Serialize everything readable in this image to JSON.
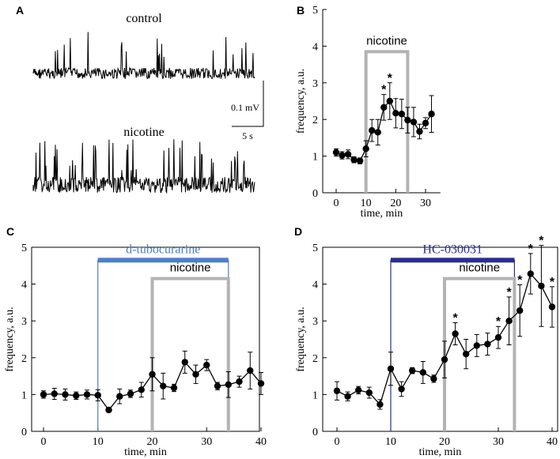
{
  "panels": {
    "A": {
      "letter": "A",
      "trace_top_label": "control",
      "trace_bottom_label": "nicotine",
      "scale_v": "0.1 mV",
      "scale_h": "5 s"
    },
    "B": {
      "letter": "B"
    },
    "C": {
      "letter": "C"
    },
    "D": {
      "letter": "D"
    }
  },
  "colors": {
    "gray_bar": "#b3b3b3",
    "dtc": "#4f7fc4",
    "hc": "#2b2f8c",
    "ink": "#000000"
  },
  "chart_data": [
    {
      "id": "B",
      "type": "line",
      "title": "",
      "xlabel": "time, min",
      "ylabel": "frequency, a.u.",
      "xlim": [
        -2,
        35
      ],
      "ylim": [
        0,
        5
      ],
      "xticks": [
        0,
        10,
        20,
        30
      ],
      "yticks": [
        0,
        1,
        2,
        3,
        4,
        5
      ],
      "x": [
        0,
        2,
        4,
        6,
        8,
        10,
        12,
        14,
        16,
        18,
        20,
        22,
        24,
        26,
        28,
        30,
        32
      ],
      "values": [
        1.1,
        1.02,
        1.05,
        0.9,
        0.87,
        1.2,
        1.7,
        1.65,
        2.33,
        2.5,
        2.17,
        2.15,
        1.98,
        1.93,
        1.67,
        1.9,
        2.15
      ],
      "errors": [
        0.1,
        0.1,
        0.12,
        0.08,
        0.08,
        0.22,
        0.3,
        0.35,
        0.35,
        0.5,
        0.4,
        0.4,
        0.35,
        0.4,
        0.2,
        0.15,
        0.5
      ],
      "significant_x": [
        16,
        18
      ],
      "annotations": [
        {
          "label": "nicotine",
          "x_start": 10,
          "x_end": 24,
          "level": 3.85,
          "color": "gray"
        }
      ]
    },
    {
      "id": "C",
      "type": "line",
      "title": "",
      "xlabel": "time, min",
      "ylabel": "frequency, a.u.",
      "xlim": [
        -2,
        40
      ],
      "ylim": [
        0,
        5
      ],
      "xticks": [
        0,
        10,
        20,
        30,
        40
      ],
      "yticks": [
        0,
        1,
        2,
        3,
        4,
        5
      ],
      "x": [
        0,
        2,
        4,
        6,
        8,
        10,
        12,
        14,
        16,
        18,
        20,
        22,
        24,
        26,
        28,
        30,
        32,
        34,
        36,
        38,
        40
      ],
      "values": [
        1.0,
        1.02,
        1.0,
        0.97,
        1.0,
        0.98,
        0.58,
        0.95,
        1.02,
        1.13,
        1.55,
        1.23,
        1.18,
        1.88,
        1.55,
        1.8,
        1.23,
        1.27,
        1.35,
        1.65,
        1.3
      ],
      "errors": [
        0.1,
        0.15,
        0.15,
        0.1,
        0.12,
        0.15,
        0.05,
        0.2,
        0.1,
        0.2,
        0.45,
        0.35,
        0.1,
        0.3,
        0.25,
        0.15,
        0.1,
        0.35,
        0.15,
        0.5,
        0.3
      ],
      "significant_x": [],
      "annotations": [
        {
          "label": "d-tubocurarine",
          "x_start": 10,
          "x_end": 34,
          "level": 4.65,
          "color": "dtc"
        },
        {
          "label": "nicotine",
          "x_start": 20,
          "x_end": 34,
          "level": 4.15,
          "color": "gray"
        }
      ]
    },
    {
      "id": "D",
      "type": "line",
      "title": "",
      "xlabel": "time, min",
      "ylabel": "frequency, a.u.",
      "xlim": [
        -2,
        40
      ],
      "ylim": [
        0,
        5
      ],
      "xticks": [
        0,
        10,
        20,
        30,
        40
      ],
      "yticks": [
        0,
        1,
        2,
        3,
        4,
        5
      ],
      "x": [
        0,
        2,
        4,
        6,
        8,
        10,
        12,
        14,
        16,
        18,
        20,
        22,
        24,
        26,
        28,
        30,
        32,
        34,
        36,
        38,
        40
      ],
      "values": [
        1.1,
        0.95,
        1.12,
        1.05,
        0.73,
        1.7,
        1.15,
        1.65,
        1.6,
        1.43,
        1.95,
        2.65,
        2.1,
        2.33,
        2.37,
        2.55,
        3.0,
        3.28,
        4.28,
        3.95,
        3.38
      ],
      "errors": [
        0.25,
        0.12,
        0.1,
        0.15,
        0.13,
        0.45,
        0.2,
        0.08,
        0.3,
        0.1,
        0.5,
        0.3,
        0.4,
        0.3,
        0.3,
        0.3,
        0.65,
        0.7,
        0.55,
        1.1,
        0.55
      ],
      "significant_x": [
        22,
        30,
        32,
        34,
        36,
        38,
        40
      ],
      "annotations": [
        {
          "label": "HC-030031",
          "x_start": 10,
          "x_end": 33,
          "level": 4.65,
          "color": "hc"
        },
        {
          "label": "nicotine",
          "x_start": 20,
          "x_end": 33,
          "level": 4.15,
          "color": "gray"
        }
      ]
    }
  ]
}
